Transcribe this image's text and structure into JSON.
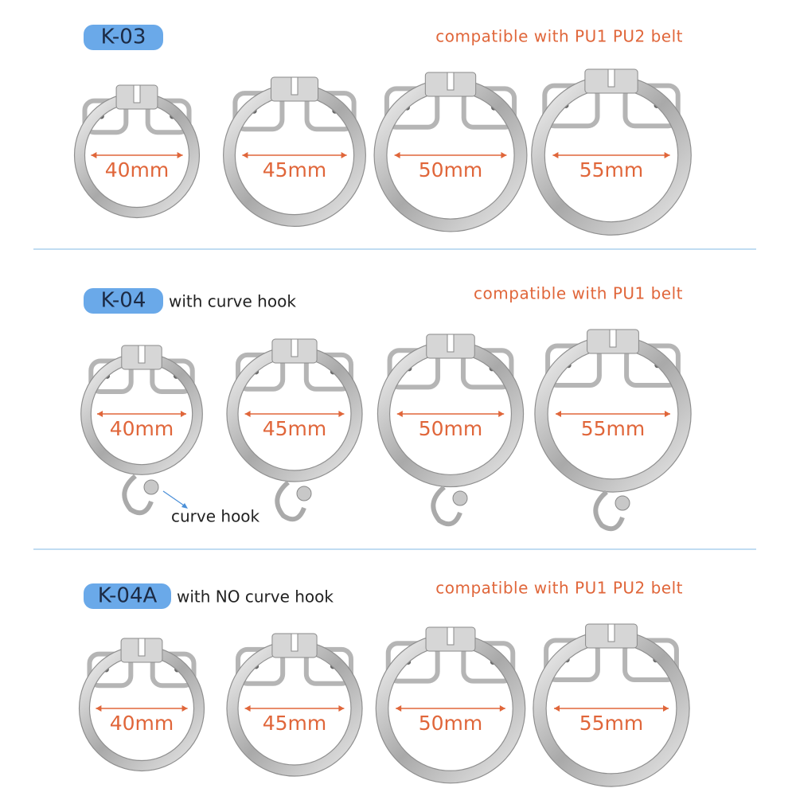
{
  "sections": [
    {
      "badge": "K-03",
      "note": "compatible with PU1 PU2 belt",
      "sizes": [
        "40mm",
        "45mm",
        "50mm",
        "55mm"
      ]
    },
    {
      "badge": "K-04",
      "subtitle": "with curve hook",
      "note": "compatible with PU1 belt",
      "sizes": [
        "40mm",
        "45mm",
        "50mm",
        "55mm"
      ],
      "annotation": "curve hook"
    },
    {
      "badge": "K-04A",
      "subtitle": "with NO curve hook",
      "note": "compatible with PU1 PU2 belt",
      "sizes": [
        "40mm",
        "45mm",
        "50mm",
        "55mm"
      ]
    }
  ]
}
